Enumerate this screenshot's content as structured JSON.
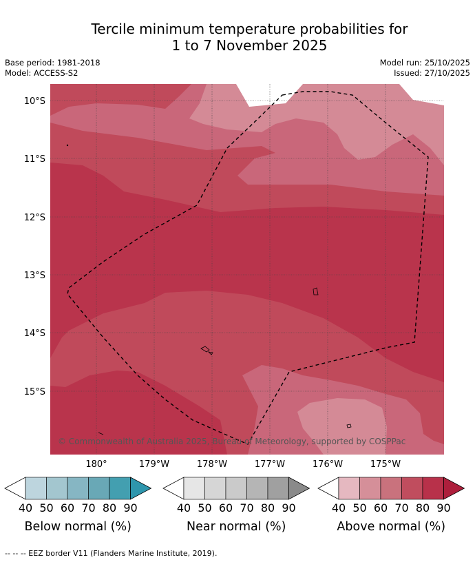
{
  "title_line1": "Tercile minimum temperature probabilities for",
  "title_line2": "1 to 7 November 2025",
  "meta": {
    "base_period": "Base period: 1981-2018",
    "model": "Model: ACCESS-S2",
    "model_run": "Model run: 25/10/2025",
    "issued": "Issued: 27/10/2025"
  },
  "map": {
    "lat_labels": [
      "10°S",
      "11°S",
      "12°S",
      "13°S",
      "14°S",
      "15°S"
    ],
    "lon_labels": [
      "180°",
      "179°W",
      "178°W",
      "177°W",
      "176°W",
      "175°W"
    ],
    "copyright": "© Commonwealth of Australia 2025, Bureau of Meteorology, supported by COSPPac"
  },
  "legends": {
    "ticks": [
      "40",
      "50",
      "60",
      "70",
      "80",
      "90"
    ],
    "below": {
      "caption": "Below normal (%)",
      "colors": [
        "#bdd5de",
        "#a3c6cf",
        "#86b6c3",
        "#69a8b6",
        "#439fb0",
        "#2e96ad"
      ]
    },
    "near": {
      "caption": "Near normal (%)",
      "colors": [
        "#e6e6e6",
        "#d6d6d6",
        "#cacaca",
        "#b5b5b5",
        "#a0a0a0",
        "#8a8a8a"
      ]
    },
    "above": {
      "caption": "Above normal (%)",
      "colors": [
        "#e5b8c0",
        "#d58f99",
        "#c9727d",
        "#c04d5e",
        "#b8314a",
        "#ad1f3c"
      ]
    }
  },
  "footer": "--  --  -- EEZ border V11 (Flanders Marine Institute, 2019)."
}
